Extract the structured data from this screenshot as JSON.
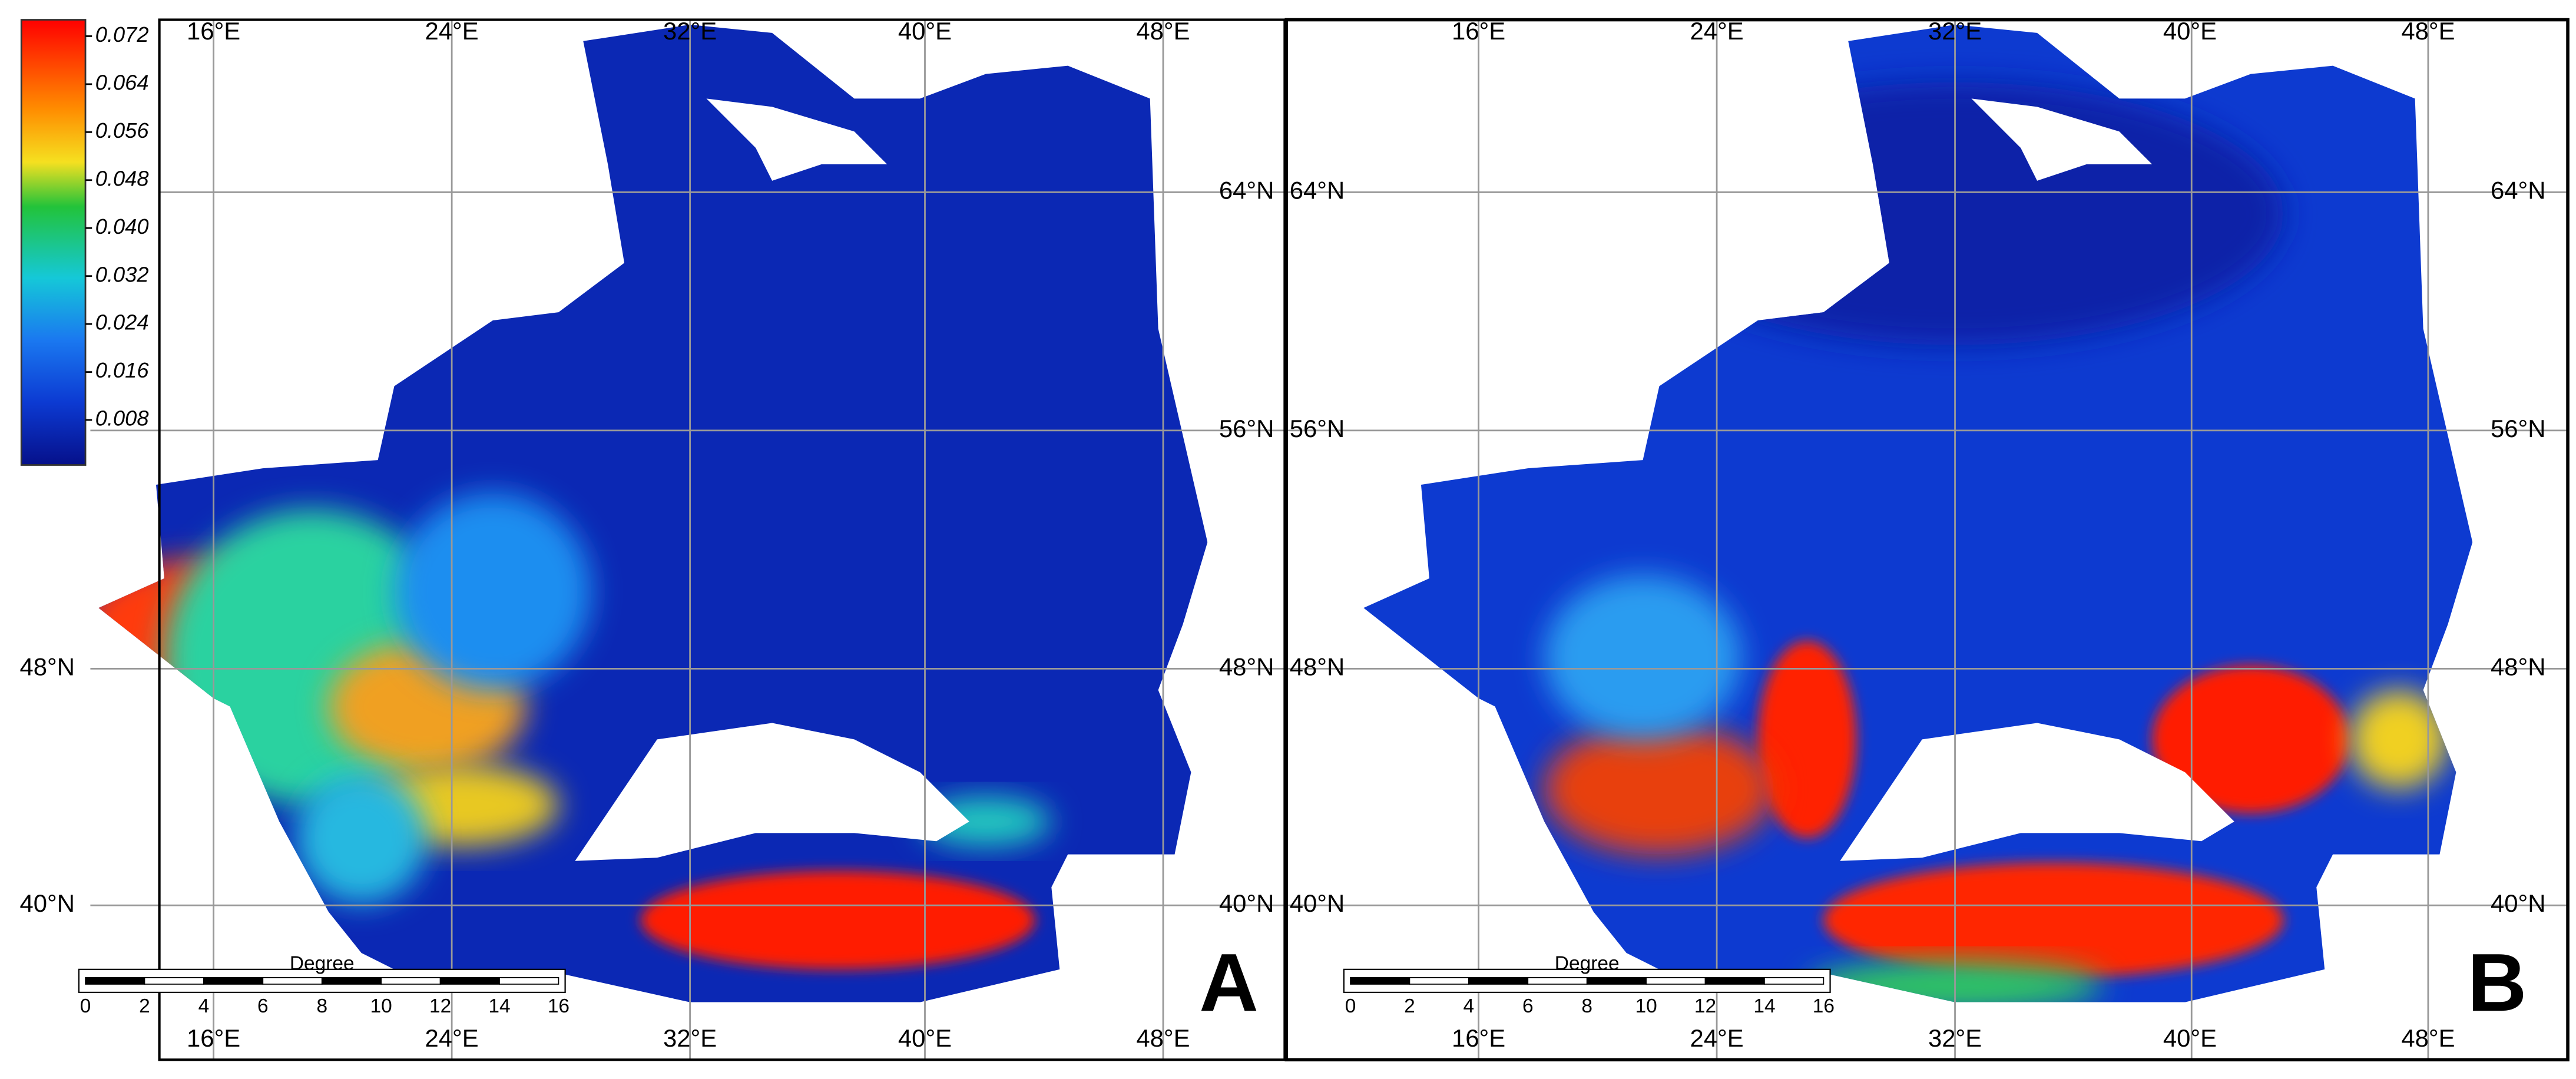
{
  "colorbar": {
    "ticks": [
      "0.072",
      "0.064",
      "0.056",
      "0.048",
      "0.040",
      "0.032",
      "0.024",
      "0.016",
      "0.008"
    ]
  },
  "panels": [
    {
      "letter": "A",
      "lon_top": [
        "16°E",
        "24°E",
        "32°E",
        "40°E",
        "48°E"
      ],
      "lon_bottom": [
        "16°E",
        "24°E",
        "32°E",
        "40°E",
        "48°E"
      ],
      "lat_left": [
        "48°N",
        "40°N"
      ],
      "lat_right": [
        "64°N",
        "56°N",
        "48°N",
        "40°N"
      ],
      "scale": {
        "unit": "Degree",
        "ticks": [
          "0",
          "2",
          "4",
          "6",
          "8",
          "10",
          "12",
          "14",
          "16"
        ]
      }
    },
    {
      "letter": "B",
      "lon_top": [
        "16°E",
        "24°E",
        "32°E",
        "40°E",
        "48°E"
      ],
      "lon_bottom": [
        "16°E",
        "24°E",
        "32°E",
        "40°E",
        "48°E"
      ],
      "lat_left": [
        "64°N",
        "56°N",
        "48°N",
        "40°N"
      ],
      "lat_right": [
        "64°N",
        "56°N",
        "48°N",
        "40°N"
      ],
      "scale": {
        "unit": "Degree",
        "ticks": [
          "0",
          "2",
          "4",
          "6",
          "8",
          "10",
          "12",
          "14",
          "16"
        ]
      }
    }
  ]
}
